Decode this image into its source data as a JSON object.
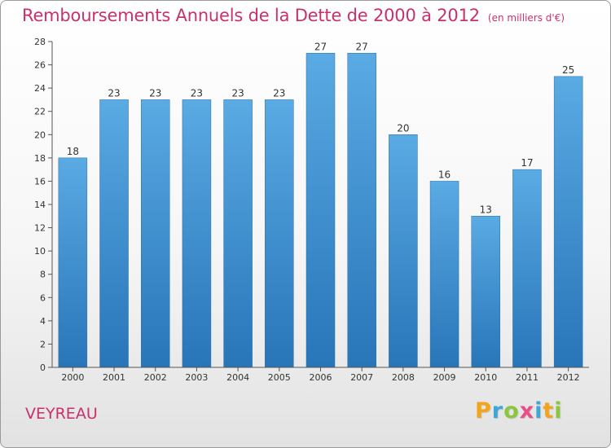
{
  "header": {
    "title": "Remboursements Annuels de la Dette de 2000 à 2012",
    "subtitle": "(en milliers d'€)"
  },
  "footer": {
    "town": "VEYREAU",
    "logo_letters": [
      "P",
      "r",
      "o",
      "x",
      "i",
      "t",
      "i"
    ],
    "logo_colors": [
      "#f2a41c",
      "#3da7d9",
      "#8cc63f",
      "#e94e8a",
      "#3da7d9",
      "#f2a41c",
      "#8cc63f"
    ]
  },
  "colors": {
    "bar_top": "#5aaae4",
    "bar_bottom": "#2875b8",
    "accent": "#c8306e",
    "grid": "#d8d8d8",
    "axis": "#555555"
  },
  "chart_data": {
    "type": "bar",
    "title": "Remboursements Annuels de la Dette de 2000 à 2012",
    "subtitle": "(en milliers d'€)",
    "xlabel": "",
    "ylabel": "",
    "categories": [
      "2000",
      "2001",
      "2002",
      "2003",
      "2004",
      "2005",
      "2006",
      "2007",
      "2008",
      "2009",
      "2010",
      "2011",
      "2012"
    ],
    "values": [
      18,
      23,
      23,
      23,
      23,
      23,
      27,
      27,
      20,
      16,
      13,
      17,
      25
    ],
    "value_labels": [
      "18",
      "23",
      "23",
      "23",
      "23",
      "23",
      "27",
      "27",
      "20",
      "16",
      "13",
      "17",
      "25"
    ],
    "ylim": [
      0,
      28
    ],
    "yticks": [
      0,
      2,
      4,
      6,
      8,
      10,
      12,
      14,
      16,
      18,
      20,
      22,
      24,
      26,
      28
    ],
    "ytick_labels": [
      "0",
      "2",
      "4",
      "6",
      "8",
      "10",
      "12",
      "14",
      "16",
      "18",
      "20",
      "22",
      "24",
      "26",
      "28"
    ],
    "grid": false,
    "legend": "none"
  }
}
